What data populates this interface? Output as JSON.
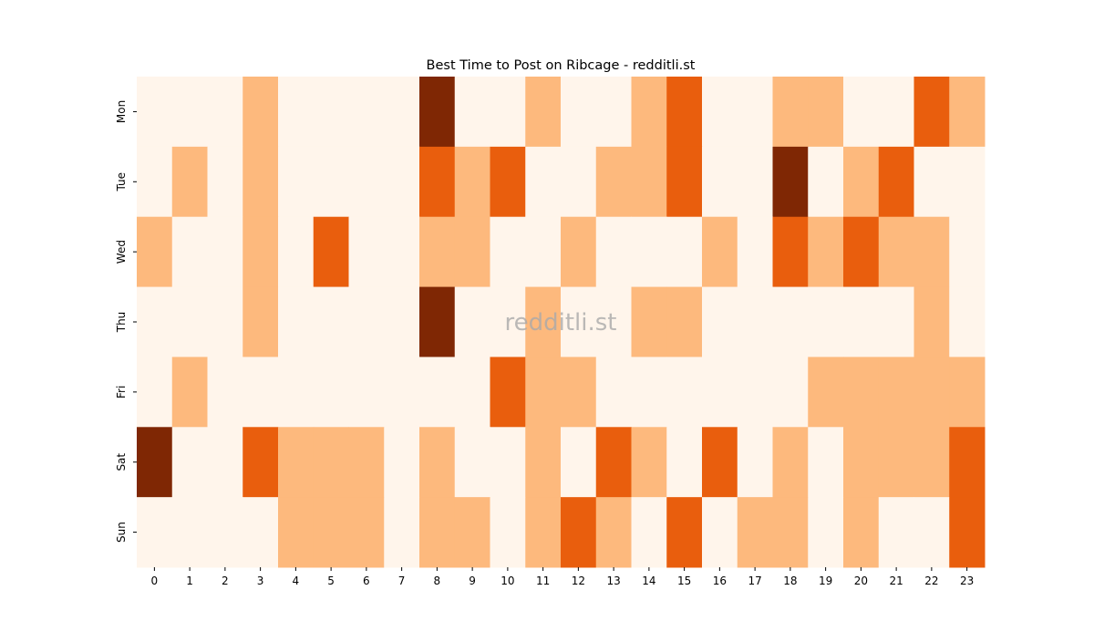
{
  "chart_data": {
    "type": "heatmap",
    "title": "Best Time to Post on Ribcage - redditli.st",
    "watermark": "redditli.st",
    "x": [
      0,
      1,
      2,
      3,
      4,
      5,
      6,
      7,
      8,
      9,
      10,
      11,
      12,
      13,
      14,
      15,
      16,
      17,
      18,
      19,
      20,
      21,
      22,
      23
    ],
    "y": [
      "Mon",
      "Tue",
      "Wed",
      "Thu",
      "Fri",
      "Sat",
      "Sun"
    ],
    "values": [
      [
        0,
        0,
        0,
        1,
        0,
        0,
        0,
        0,
        3,
        0,
        0,
        1,
        0,
        0,
        1,
        2,
        0,
        0,
        1,
        1,
        0,
        0,
        2,
        1
      ],
      [
        0,
        1,
        0,
        1,
        0,
        0,
        0,
        0,
        2,
        1,
        2,
        0,
        0,
        1,
        1,
        2,
        0,
        0,
        3,
        0,
        1,
        2,
        0,
        0
      ],
      [
        1,
        0,
        0,
        1,
        0,
        2,
        0,
        0,
        1,
        1,
        0,
        0,
        1,
        0,
        0,
        0,
        1,
        0,
        2,
        1,
        2,
        1,
        1,
        0
      ],
      [
        0,
        0,
        0,
        1,
        0,
        0,
        0,
        0,
        3,
        0,
        0,
        1,
        0,
        0,
        1,
        1,
        0,
        0,
        0,
        0,
        0,
        0,
        1,
        0
      ],
      [
        0,
        1,
        0,
        0,
        0,
        0,
        0,
        0,
        0,
        0,
        2,
        1,
        1,
        0,
        0,
        0,
        0,
        0,
        0,
        1,
        1,
        1,
        1,
        1
      ],
      [
        3,
        0,
        0,
        2,
        1,
        1,
        1,
        0,
        1,
        0,
        0,
        1,
        0,
        2,
        1,
        0,
        2,
        0,
        1,
        0,
        1,
        1,
        1,
        2
      ],
      [
        0,
        0,
        0,
        0,
        1,
        1,
        1,
        0,
        1,
        1,
        0,
        1,
        2,
        1,
        0,
        2,
        0,
        1,
        1,
        0,
        1,
        0,
        0,
        2
      ]
    ],
    "colors": [
      "#fff5eb",
      "#fdb97d",
      "#e95e0d",
      "#7f2704"
    ]
  }
}
